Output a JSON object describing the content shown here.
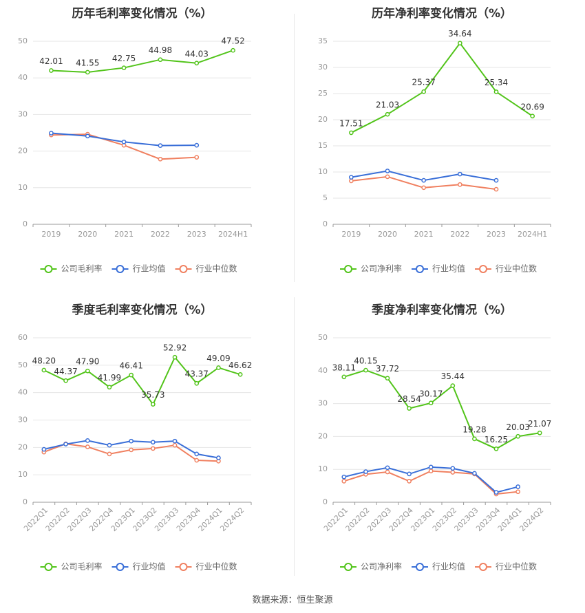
{
  "source": "数据来源：恒生聚源",
  "legend_colors": [
    "#52c41a",
    "#3a6fd8",
    "#f08060"
  ],
  "chart_data": [
    {
      "type": "line",
      "title": "历年毛利率变化情况（%）",
      "categories": [
        "2019",
        "2020",
        "2021",
        "2022",
        "2023",
        "2024H1"
      ],
      "ylim": [
        0,
        50
      ],
      "yticks": [
        0,
        10,
        20,
        30,
        40,
        50
      ],
      "legend": [
        "公司毛利率",
        "行业均值",
        "行业中位数"
      ],
      "series": [
        {
          "name": "公司毛利率",
          "color": "#52c41a",
          "labels": true,
          "values": [
            42.01,
            41.55,
            42.75,
            44.98,
            44.03,
            47.52
          ]
        },
        {
          "name": "行业均值",
          "color": "#3a6fd8",
          "labels": false,
          "values": [
            24.9,
            24.1,
            22.5,
            21.5,
            21.6,
            null
          ]
        },
        {
          "name": "行业中位数",
          "color": "#f08060",
          "labels": false,
          "values": [
            24.4,
            24.6,
            21.6,
            17.8,
            18.3,
            null
          ]
        }
      ],
      "rotate_x": false
    },
    {
      "type": "line",
      "title": "历年净利率变化情况（%）",
      "categories": [
        "2019",
        "2020",
        "2021",
        "2022",
        "2023",
        "2024H1"
      ],
      "ylim": [
        0,
        35
      ],
      "yticks": [
        0,
        5,
        10,
        15,
        20,
        25,
        30,
        35
      ],
      "legend": [
        "公司净利率",
        "行业均值",
        "行业中位数"
      ],
      "series": [
        {
          "name": "公司净利率",
          "color": "#52c41a",
          "labels": true,
          "values": [
            17.51,
            21.03,
            25.37,
            34.64,
            25.34,
            20.69
          ]
        },
        {
          "name": "行业均值",
          "color": "#3a6fd8",
          "labels": false,
          "values": [
            9.0,
            10.2,
            8.4,
            9.6,
            8.4,
            null
          ]
        },
        {
          "name": "行业中位数",
          "color": "#f08060",
          "labels": false,
          "values": [
            8.3,
            9.1,
            7.0,
            7.6,
            6.7,
            null
          ]
        }
      ],
      "rotate_x": false
    },
    {
      "type": "line",
      "title": "季度毛利率变化情况（%）",
      "categories": [
        "2022Q1",
        "2022Q2",
        "2022Q3",
        "2022Q4",
        "2023Q1",
        "2023Q2",
        "2023Q3",
        "2023Q4",
        "2024Q1",
        "2024Q2"
      ],
      "ylim": [
        0,
        60
      ],
      "yticks": [
        0,
        10,
        20,
        30,
        40,
        50,
        60
      ],
      "legend": [
        "公司毛利率",
        "行业均值",
        "行业中位数"
      ],
      "series": [
        {
          "name": "公司毛利率",
          "color": "#52c41a",
          "labels": true,
          "values": [
            48.2,
            44.37,
            47.9,
            41.99,
            46.41,
            35.73,
            52.92,
            43.37,
            49.09,
            46.62
          ]
        },
        {
          "name": "行业均值",
          "color": "#3a6fd8",
          "labels": false,
          "values": [
            19.3,
            21.2,
            22.5,
            20.8,
            22.3,
            21.9,
            22.3,
            17.6,
            16.2,
            null
          ]
        },
        {
          "name": "行业中位数",
          "color": "#f08060",
          "labels": false,
          "values": [
            18.3,
            21.3,
            20.2,
            17.6,
            19.1,
            19.6,
            20.8,
            15.3,
            15.0,
            null
          ]
        }
      ],
      "rotate_x": true
    },
    {
      "type": "line",
      "title": "季度净利率变化情况（%）",
      "categories": [
        "2022Q1",
        "2022Q2",
        "2022Q3",
        "2022Q4",
        "2023Q1",
        "2023Q2",
        "2023Q3",
        "2023Q4",
        "2024Q1",
        "2024Q2"
      ],
      "ylim": [
        0,
        50
      ],
      "yticks": [
        0,
        10,
        20,
        30,
        40,
        50
      ],
      "legend": [
        "公司净利率",
        "行业均值",
        "行业中位数"
      ],
      "series": [
        {
          "name": "公司净利率",
          "color": "#52c41a",
          "labels": true,
          "values": [
            38.11,
            40.15,
            37.72,
            28.54,
            30.17,
            35.44,
            19.28,
            16.25,
            20.03,
            21.07
          ]
        },
        {
          "name": "行业均值",
          "color": "#3a6fd8",
          "labels": false,
          "values": [
            7.7,
            9.3,
            10.5,
            8.6,
            10.7,
            10.3,
            8.8,
            3.0,
            4.7,
            null
          ]
        },
        {
          "name": "行业中位数",
          "color": "#f08060",
          "labels": false,
          "values": [
            6.4,
            8.5,
            9.2,
            6.4,
            9.5,
            9.1,
            8.6,
            2.5,
            3.2,
            null
          ]
        }
      ],
      "rotate_x": true
    }
  ]
}
